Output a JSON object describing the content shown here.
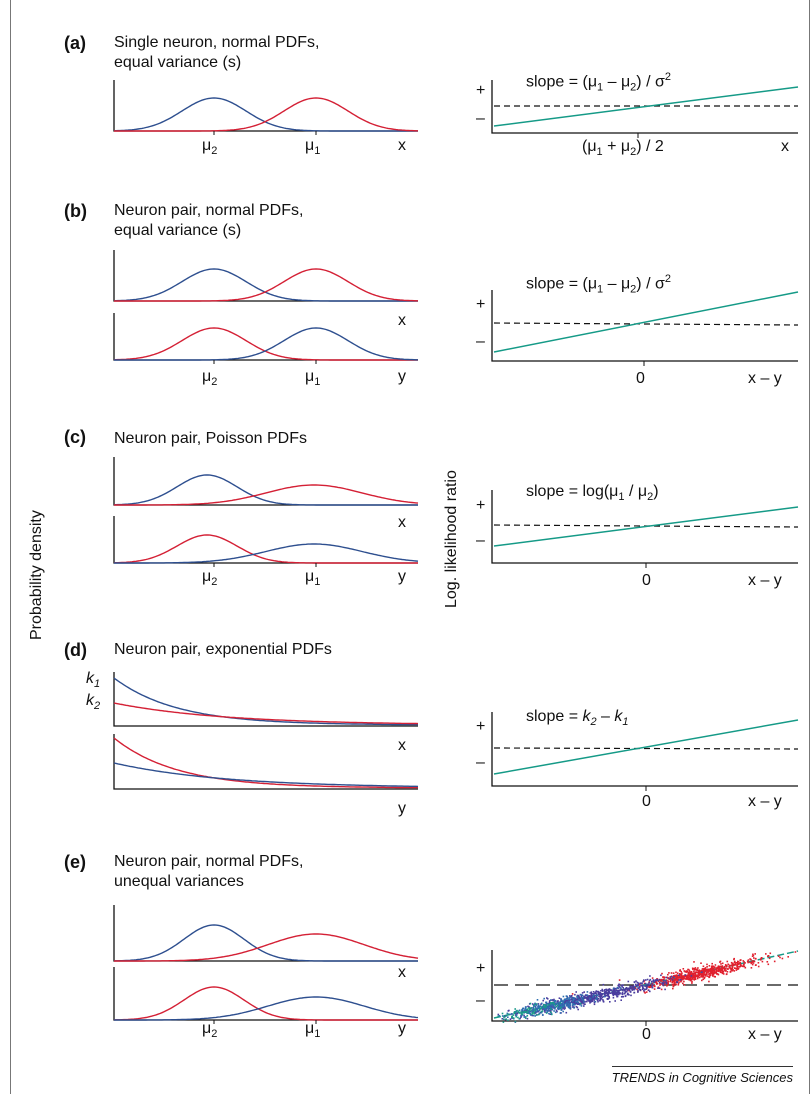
{
  "y_axis_left": "Probability density",
  "y_axis_right": "Log. likelihood ratio",
  "credit": "TRENDS in Cognitive Sciences",
  "colors": {
    "blue": "#2e4f8f",
    "red": "#d42035",
    "teal": "#159a87"
  },
  "panels": [
    {
      "id": "a",
      "label": "(a)",
      "title1": "Single neuron, normal PDFs,",
      "title2": "equal variance (s)",
      "mu2": "μ2",
      "mu1": "μ1",
      "xvar": "x",
      "yvar": "",
      "slope": "slope = (μ1 − μ2) / σ2",
      "tick_plus": "+",
      "tick_minus": "–",
      "mid_label": "(μ1 + μ2) / 2",
      "axis_label": "x"
    },
    {
      "id": "b",
      "label": "(b)",
      "title1": "Neuron pair, normal PDFs,",
      "title2": "equal variance (s)",
      "mu2": "μ2",
      "mu1": "μ1",
      "xvar": "x",
      "yvar": "y",
      "slope": "slope = (μ1 − μ2) / σ2",
      "tick_plus": "+",
      "tick_minus": "–",
      "mid_label": "0",
      "axis_label": "x – y"
    },
    {
      "id": "c",
      "label": "(c)",
      "title1": "Neuron pair, Poisson PDFs",
      "title2": "",
      "mu2": "μ2",
      "mu1": "μ1",
      "xvar": "x",
      "yvar": "y",
      "slope": "slope = log(μ1 / μ2)",
      "tick_plus": "+",
      "tick_minus": "–",
      "mid_label": "0",
      "axis_label": "x – y"
    },
    {
      "id": "d",
      "label": "(d)",
      "title1": "Neuron pair, exponential PDFs",
      "title2": "",
      "k1": "k1",
      "k2": "k2",
      "xvar": "x",
      "yvar": "y",
      "slope": "slope = k2 − k1",
      "tick_plus": "+",
      "tick_minus": "–",
      "mid_label": "0",
      "axis_label": "x – y"
    },
    {
      "id": "e",
      "label": "(e)",
      "title1": "Neuron pair, normal PDFs,",
      "title2": "unequal variances",
      "mu2": "μ2",
      "mu1": "μ1",
      "xvar": "x",
      "yvar": "y",
      "tick_plus": "+",
      "tick_minus": "–",
      "mid_label": "0",
      "axis_label": "x – y"
    }
  ]
}
